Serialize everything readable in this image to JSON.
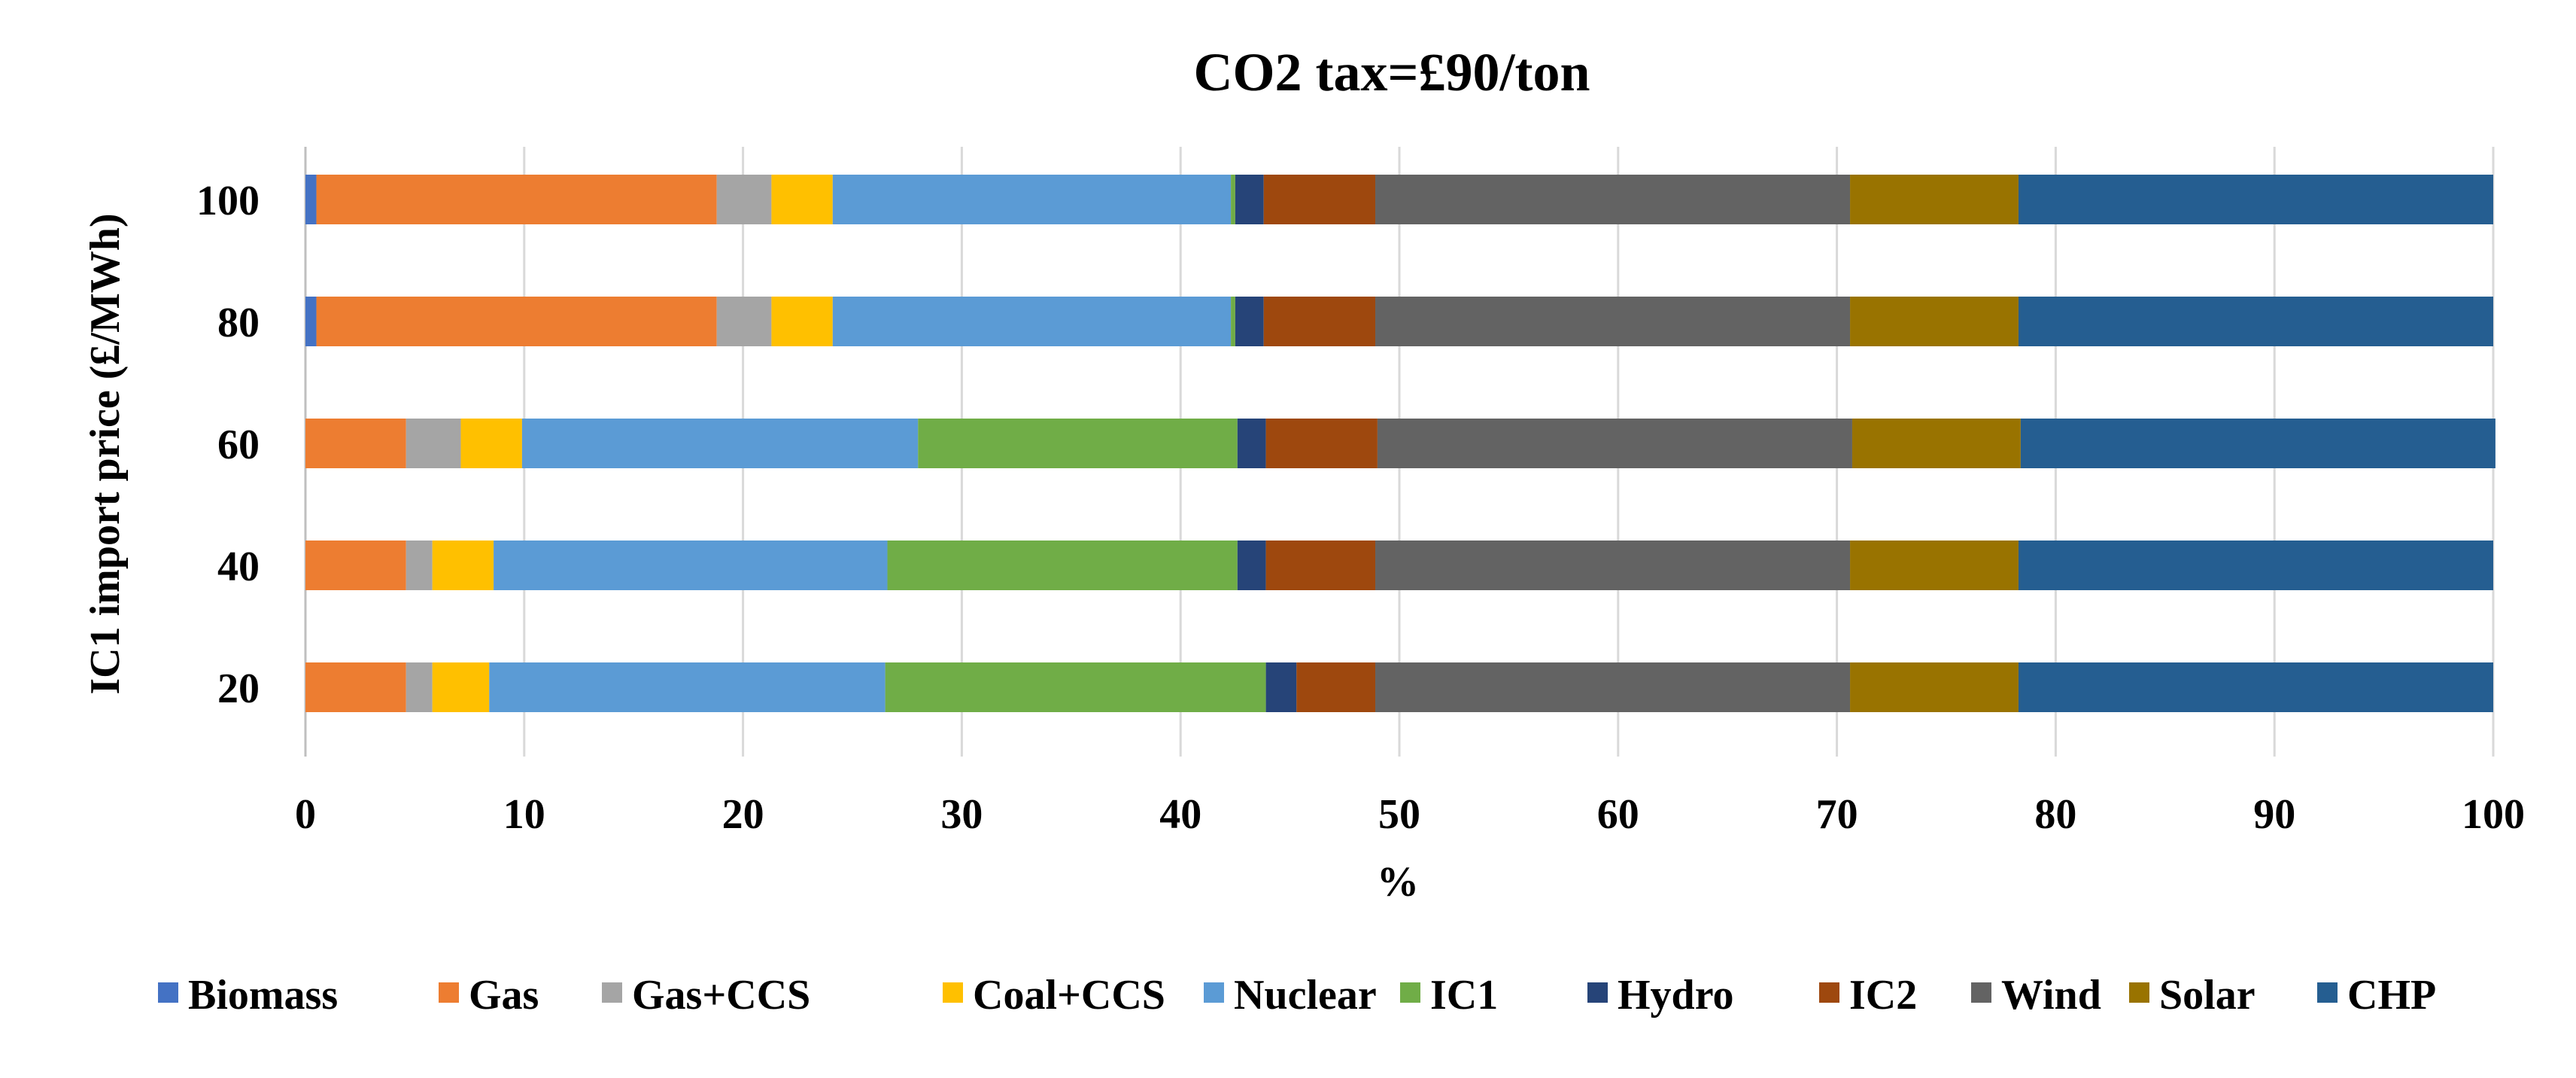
{
  "chart_data": {
    "type": "bar",
    "orientation": "horizontal",
    "stacked": true,
    "title": "CO2 tax=£90/ton",
    "xlabel": "%",
    "ylabel": "IC1  import  price  (£/MWh)",
    "xlim": [
      0,
      100
    ],
    "x_ticks": [
      "0",
      "10",
      "20",
      "30",
      "40",
      "50",
      "60",
      "70",
      "80",
      "90",
      "100"
    ],
    "grid": true,
    "legend_position": "bottom",
    "categories": [
      "100",
      "80",
      "60",
      "40",
      "20"
    ],
    "series": [
      {
        "name": "Biomass",
        "color": "#4472C4",
        "values": [
          0.5,
          0.5,
          0,
          0,
          0
        ]
      },
      {
        "name": "Gas",
        "color": "#ED7D31",
        "values": [
          18.3,
          18.3,
          4.6,
          4.6,
          4.6
        ]
      },
      {
        "name": "Gas+CCS",
        "color": "#A5A5A5",
        "values": [
          2.5,
          2.5,
          2.5,
          1.2,
          1.2
        ]
      },
      {
        "name": "Coal+CCS",
        "color": "#FFC000",
        "values": [
          2.8,
          2.8,
          2.8,
          2.8,
          2.6
        ]
      },
      {
        "name": "Nuclear",
        "color": "#5B9BD5",
        "values": [
          18.2,
          18.2,
          18.1,
          18.0,
          18.1
        ]
      },
      {
        "name": "IC1",
        "color": "#70AD47",
        "values": [
          0.2,
          0.2,
          14.6,
          16.0,
          17.4
        ]
      },
      {
        "name": "Hydro",
        "color": "#264478",
        "values": [
          1.3,
          1.3,
          1.3,
          1.3,
          1.4
        ]
      },
      {
        "name": "IC2",
        "color": "#9E480E",
        "values": [
          5.1,
          5.1,
          5.1,
          5.0,
          3.6
        ]
      },
      {
        "name": "Wind",
        "color": "#636363",
        "values": [
          21.7,
          21.7,
          21.7,
          21.7,
          21.7
        ]
      },
      {
        "name": "Solar",
        "color": "#997300",
        "values": [
          7.7,
          7.7,
          7.7,
          7.7,
          7.7
        ]
      },
      {
        "name": "CHP",
        "color": "#255E91",
        "values": [
          21.7,
          21.7,
          21.7,
          21.7,
          21.7
        ]
      }
    ]
  }
}
